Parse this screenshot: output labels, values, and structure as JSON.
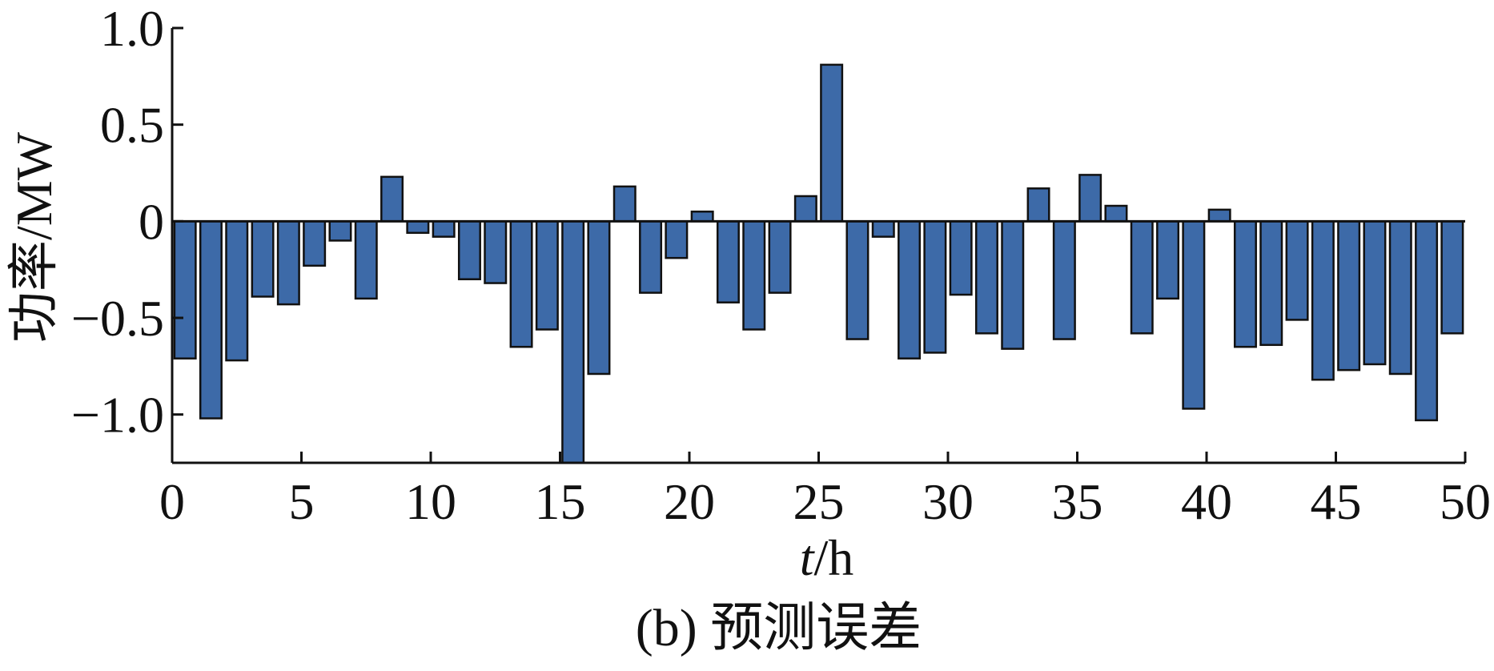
{
  "chart_data": {
    "type": "bar",
    "title": "",
    "xlabel": {
      "italic_var": "t",
      "unit": "/h"
    },
    "ylabel": "功率/MW",
    "caption": "(b) 预测误差",
    "xlim": [
      0,
      50
    ],
    "ylim": [
      -1.25,
      1.0
    ],
    "xticks": [
      0,
      5,
      10,
      15,
      20,
      25,
      30,
      35,
      40,
      45,
      50
    ],
    "xtick_labels": [
      "0",
      "5",
      "10",
      "15",
      "20",
      "25",
      "30",
      "35",
      "40",
      "45",
      "50"
    ],
    "yticks": [
      1.0,
      0.5,
      0,
      -0.5,
      -1.0
    ],
    "ytick_labels": [
      "1.0",
      "0.5",
      "0",
      "−0.5",
      "−1.0"
    ],
    "grid": false,
    "bar_color": "#3d6aa8",
    "edge_color": "#111111",
    "x": [
      1,
      2,
      3,
      4,
      5,
      6,
      7,
      8,
      9,
      10,
      11,
      12,
      13,
      14,
      15,
      16,
      17,
      18,
      19,
      20,
      21,
      22,
      23,
      24,
      25,
      26,
      27,
      28,
      29,
      30,
      31,
      32,
      33,
      34,
      35,
      36,
      37,
      38,
      39,
      40,
      41,
      42,
      43,
      44,
      45,
      46,
      47,
      48,
      49,
      50
    ],
    "values": [
      -0.71,
      -1.02,
      -0.72,
      -0.39,
      -0.43,
      -0.23,
      -0.1,
      -0.4,
      0.23,
      -0.06,
      -0.08,
      -0.3,
      -0.32,
      -0.65,
      -0.56,
      -1.26,
      -0.79,
      0.18,
      -0.37,
      -0.19,
      0.05,
      -0.42,
      -0.56,
      -0.37,
      0.13,
      0.81,
      -0.61,
      -0.08,
      -0.71,
      -0.68,
      -0.38,
      -0.58,
      -0.66,
      0.17,
      -0.61,
      0.24,
      0.08,
      -0.58,
      -0.4,
      -0.97,
      0.06,
      -0.65,
      -0.64,
      -0.51,
      -0.82,
      -0.77,
      -0.74,
      -0.79,
      -1.03,
      -0.58
    ]
  }
}
